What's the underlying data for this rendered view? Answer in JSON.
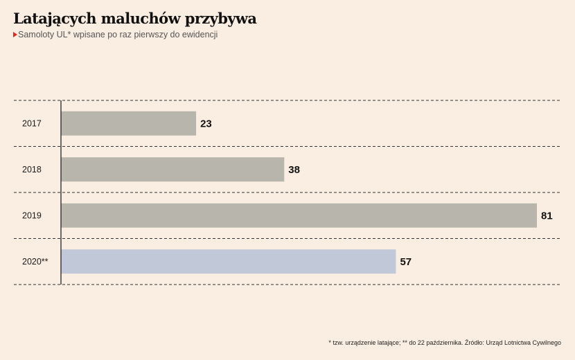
{
  "header": {
    "title": "Latających maluchów przybywa",
    "subtitle": "Samoloty UL* wpisane po raz pierwszy do ewidencji"
  },
  "chart_data": {
    "type": "bar",
    "orientation": "horizontal",
    "categories": [
      "2017",
      "2018",
      "2019",
      "2020**"
    ],
    "values": [
      23,
      38,
      81,
      57
    ],
    "value_labels": [
      "23",
      "38",
      "81",
      "57"
    ],
    "xlim": [
      0,
      81
    ],
    "grid": "dashed row separators",
    "colors": {
      "default": "#b8b6ac",
      "highlight": "#c1c8d7",
      "highlight_category": "2020**"
    }
  },
  "footnote": "* tzw. urządzenie latające; ** do 22 października. Źródło: Urząd Lotnictwa Cywilnego"
}
